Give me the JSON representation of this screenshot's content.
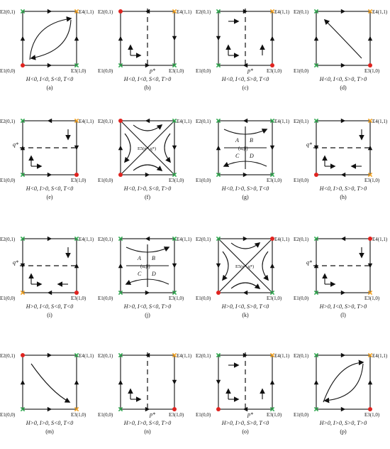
{
  "colors": {
    "stable_point": "#e0231f",
    "green_cross": "#2fa84f",
    "orange_mark": "#f0a020",
    "lines": "#111111"
  },
  "panels": [
    {
      "id": "a",
      "label": "(a)",
      "condition": "H<0, I<0, S<0, T<0",
      "vertices": [
        "green",
        "orange",
        "red",
        "green"
      ],
      "kind": "curveAround",
      "dir": "ccw",
      "xsym": "",
      "ysym": ""
    },
    {
      "id": "b",
      "label": "(b)",
      "condition": "H<0, I<0, S<0, T>0",
      "vertices": [
        "red",
        "orange",
        "green",
        "green"
      ],
      "kind": "vline",
      "xsym": "p*",
      "ysym": ""
    },
    {
      "id": "c",
      "label": "(c)",
      "condition": "H<0, I<0, S>0, T<0",
      "vertices": [
        "green",
        "orange",
        "green",
        "red"
      ],
      "kind": "vline2",
      "xsym": "p*",
      "ysym": ""
    },
    {
      "id": "d",
      "label": "(d)",
      "condition": "H<0, I<0, S>0, T>0",
      "vertices": [
        "green",
        "orange",
        "green",
        "red"
      ],
      "kind": "singleDiag",
      "dir": "up",
      "xsym": "",
      "ysym": ""
    },
    {
      "id": "e",
      "label": "(e)",
      "condition": "H<0, I>0, S<0, T<0",
      "vertices": [
        "green",
        "orange",
        "green",
        "red"
      ],
      "kind": "hline",
      "xsym": "",
      "ysym": "q*"
    },
    {
      "id": "f",
      "label": "(f)",
      "condition": "H<0, I>0, S<0, T>0",
      "vertices": [
        "red",
        "green",
        "red",
        "green"
      ],
      "kind": "saddleCross",
      "xsym": "",
      "ysym": "",
      "center": "E5(p*,q*)"
    },
    {
      "id": "g",
      "label": "(g)",
      "condition": "H<0, I>0, S>0, T<0",
      "vertices": [
        "green",
        "green",
        "green",
        "green"
      ],
      "kind": "center",
      "xsym": "",
      "ysym": "",
      "center": "(α,β)",
      "regions": [
        "A",
        "B",
        "C",
        "D"
      ]
    },
    {
      "id": "h",
      "label": "(h)",
      "condition": "H<0, I>0, S>0, T>0",
      "vertices": [
        "green",
        "orange",
        "red",
        "orange"
      ],
      "kind": "hline2",
      "xsym": "",
      "ysym": "q*"
    },
    {
      "id": "i",
      "label": "(i)",
      "condition": "H>0, I<0, S<0, T<0",
      "vertices": [
        "green",
        "green",
        "orange",
        "red"
      ],
      "kind": "hline2",
      "xsym": "",
      "ysym": "q*"
    },
    {
      "id": "j",
      "label": "(j)",
      "condition": "H>0, I<0, S<0, T>0",
      "vertices": [
        "green",
        "green",
        "green",
        "green"
      ],
      "kind": "center",
      "xsym": "",
      "ysym": "",
      "center": "(α,β)",
      "regions": [
        "A",
        "B",
        "C",
        "D"
      ]
    },
    {
      "id": "k",
      "label": "(k)",
      "condition": "H>0, I<0, S>0, T<0",
      "vertices": [
        "green",
        "red",
        "red",
        "green"
      ],
      "kind": "saddleCross2",
      "xsym": "",
      "ysym": "",
      "center": "E5(p*,q*)"
    },
    {
      "id": "l",
      "label": "(l)",
      "condition": "H>0, I<0, S>0, T>0",
      "vertices": [
        "green",
        "red",
        "green",
        "orange"
      ],
      "kind": "hline",
      "xsym": "",
      "ysym": "q*"
    },
    {
      "id": "m",
      "label": "(m)",
      "condition": "H>0, I>0, S<0, T<0",
      "vertices": [
        "red",
        "green",
        "green",
        "orange"
      ],
      "kind": "singleDiag",
      "dir": "down",
      "xsym": "",
      "ysym": ""
    },
    {
      "id": "n",
      "label": "(n)",
      "condition": "H>0, I>0, S<0, T>0",
      "vertices": [
        "green",
        "orange",
        "green",
        "red"
      ],
      "kind": "vline",
      "xsym": "p*",
      "ysym": ""
    },
    {
      "id": "o",
      "label": "(o)",
      "condition": "H>0, I>0, S>0, T<0",
      "vertices": [
        "green",
        "orange",
        "red",
        "green"
      ],
      "kind": "vline2",
      "xsym": "p*",
      "ysym": ""
    },
    {
      "id": "p",
      "label": "(p)",
      "condition": "H>0, I>0, S>0, T>0",
      "vertices": [
        "green",
        "orange",
        "green",
        "red"
      ],
      "kind": "curveAround",
      "dir": "cw",
      "xsym": "",
      "ysym": ""
    }
  ],
  "vertex_labels": {
    "E1": "E1(0,0)",
    "E2": "E2(0,1)",
    "E3": "E3(1,0)",
    "E4": "E4(1,1)"
  }
}
